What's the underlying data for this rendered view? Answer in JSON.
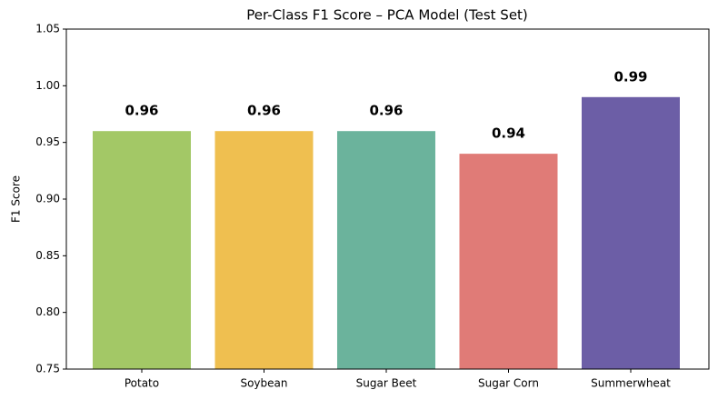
{
  "chart_data": {
    "type": "bar",
    "title": "Per-Class F1 Score – PCA Model (Test Set)",
    "y_label": "F1 Score",
    "categories": [
      "Potato",
      "Soybean",
      "Sugar Beet",
      "Sugar Corn",
      "Summerwheat"
    ],
    "values": [
      0.96,
      0.96,
      0.96,
      0.94,
      0.99
    ],
    "colors": [
      "#a3c866",
      "#efbf50",
      "#6bb39c",
      "#e07b77",
      "#6c5ea6"
    ],
    "ylim": [
      0.75,
      1.05
    ],
    "yticks": [
      0.75,
      {
        "value": 0.8,
        "label": "0.80"
      },
      0.85,
      {
        "value": 0.9,
        "label": "0.90"
      },
      0.95,
      {
        "value": 1.0,
        "label": "1.00"
      },
      1.05
    ]
  }
}
